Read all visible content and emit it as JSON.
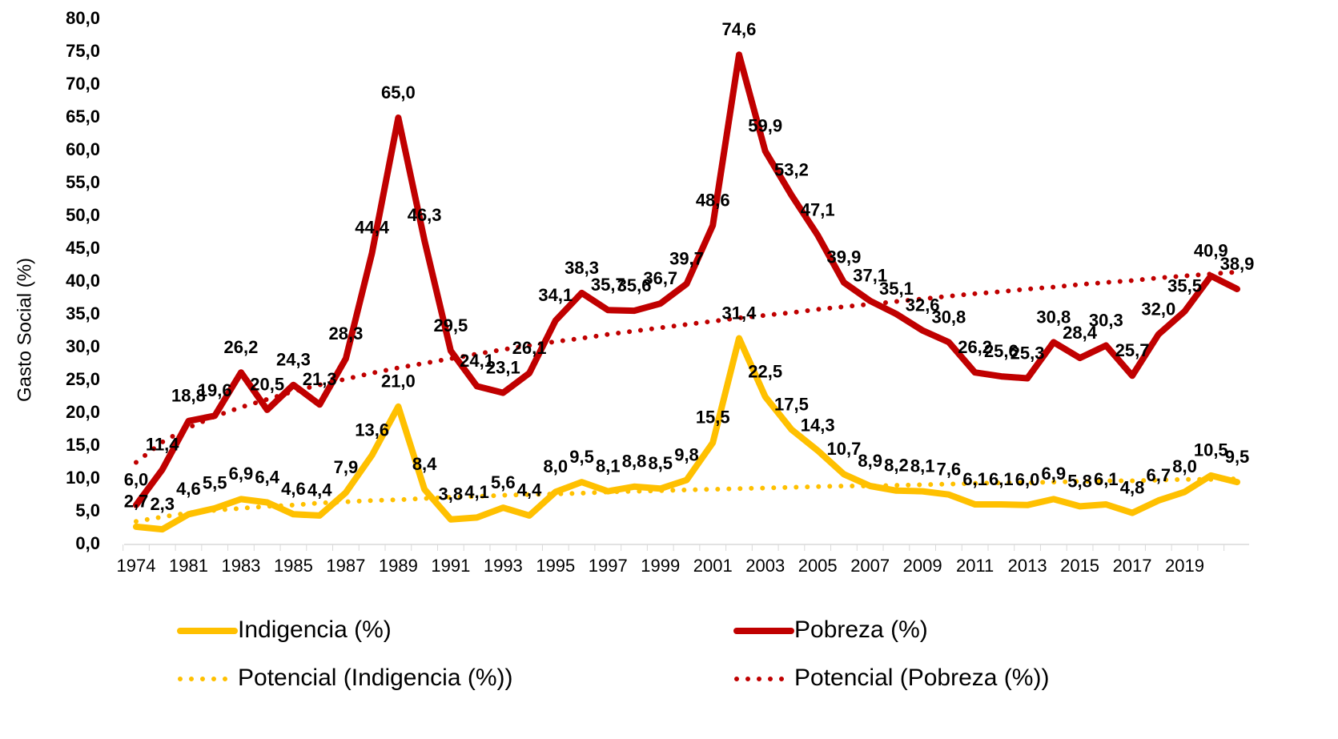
{
  "chart_data": {
    "type": "line",
    "y_label": "Gasto Social  (%)",
    "categories": [
      "1974",
      null,
      "1981",
      null,
      "1983",
      null,
      "1985",
      null,
      "1987",
      null,
      "1989",
      null,
      "1991",
      null,
      "1993",
      null,
      "1995",
      null,
      "1997",
      null,
      "1999",
      null,
      "2001",
      null,
      "2003",
      null,
      "2005",
      null,
      "2007",
      null,
      "2009",
      null,
      "2011",
      null,
      "2013",
      null,
      "2015",
      null,
      "2017",
      null,
      "2019",
      null,
      null
    ],
    "ylim": [
      0,
      80
    ],
    "yticks": [
      {
        "value": 0,
        "label": "0,0"
      },
      {
        "value": 5,
        "label": "5,0"
      },
      {
        "value": 10,
        "label": "10,0"
      },
      {
        "value": 15,
        "label": "15,0"
      },
      {
        "value": 20,
        "label": "20,0"
      },
      {
        "value": 25,
        "label": "25,0"
      },
      {
        "value": 30,
        "label": "30,0"
      },
      {
        "value": 35,
        "label": "35,0"
      },
      {
        "value": 40,
        "label": "40,0"
      },
      {
        "value": 45,
        "label": "45,0"
      },
      {
        "value": 50,
        "label": "50,0"
      },
      {
        "value": 55,
        "label": "55,0"
      },
      {
        "value": 60,
        "label": "60,0"
      },
      {
        "value": 65,
        "label": "65,0"
      },
      {
        "value": 70,
        "label": "70,0"
      },
      {
        "value": 75,
        "label": "75,0"
      },
      {
        "value": 80,
        "label": "80,0"
      }
    ],
    "series": [
      {
        "name": "Indigencia (%)",
        "color": "#FFC000",
        "dash": "solid",
        "values": [
          2.7,
          2.3,
          4.6,
          5.5,
          6.9,
          6.4,
          4.6,
          4.4,
          7.9,
          13.6,
          21.0,
          8.4,
          3.8,
          4.1,
          5.6,
          4.4,
          8.0,
          9.5,
          8.1,
          8.8,
          8.5,
          9.8,
          15.5,
          31.4,
          22.5,
          17.5,
          14.3,
          10.7,
          8.9,
          8.2,
          8.1,
          7.6,
          6.1,
          6.1,
          6.0,
          6.9,
          5.8,
          6.1,
          4.8,
          6.7,
          8.0,
          10.5,
          9.5
        ],
        "value_labels": [
          "2,7",
          "2,3",
          "4,6",
          "5,5",
          "6,9",
          "6,4",
          "4,6",
          "4,4",
          "7,9",
          "13,6",
          "21,0",
          "8,4",
          "3,8",
          "4,1",
          "5,6",
          "4,4",
          "8,0",
          "9,5",
          "8,1",
          "8,8",
          "8,5",
          "9,8",
          "15,5",
          "31,4",
          "22,5",
          "17,5",
          "14,3",
          "10,7",
          "8,9",
          "8,2",
          "8,1",
          "7,6",
          "6,1",
          "6,1",
          "6,0",
          "6,9",
          "5,8",
          "6,1",
          "4,8",
          "6,7",
          "8,0",
          "10,5",
          "9,5"
        ]
      },
      {
        "name": "Pobreza (%)",
        "color": "#C00000",
        "dash": "solid",
        "values": [
          6.0,
          11.4,
          18.8,
          19.6,
          26.2,
          20.5,
          24.3,
          21.3,
          28.3,
          44.4,
          65.0,
          46.3,
          29.5,
          24.1,
          23.1,
          26.1,
          34.1,
          38.3,
          35.7,
          35.6,
          36.7,
          39.7,
          48.6,
          74.6,
          59.9,
          53.2,
          47.1,
          39.9,
          37.1,
          35.1,
          32.6,
          30.8,
          26.2,
          25.6,
          25.3,
          30.8,
          28.4,
          30.3,
          25.7,
          32.0,
          35.5,
          40.9,
          38.9
        ],
        "value_labels": [
          "6,0",
          "11,4",
          "18,8",
          "19,6",
          "26,2",
          "20,5",
          "24,3",
          "21,3",
          "28,3",
          "44,4",
          "65,0",
          "46,3",
          "29,5",
          "24,1",
          "23,1",
          "26,1",
          "34,1",
          "38,3",
          "35,7",
          "35,6",
          "36,7",
          "39,7",
          "48,6",
          "74,6",
          "59,9",
          "53,2",
          "47,1",
          "39,9",
          "37,1",
          "35,1",
          "32,6",
          "30,8",
          "26,2",
          "25,6",
          "25,3",
          "30,8",
          "28,4",
          "30,3",
          "25,7",
          "32,0",
          "35,5",
          "40,9",
          "38,9"
        ]
      },
      {
        "name": "Potencial (Indigencia (%))",
        "color": "#FFC000",
        "dash": "dotted",
        "values": [
          3.5,
          4.2,
          4.8,
          5.2,
          5.5,
          5.8,
          6.0,
          6.3,
          6.5,
          6.7,
          6.8,
          7.0,
          7.2,
          7.3,
          7.5,
          7.6,
          7.7,
          7.8,
          8.0,
          8.1,
          8.2,
          8.3,
          8.4,
          8.5,
          8.6,
          8.7,
          8.8,
          8.9,
          8.9,
          9.0,
          9.1,
          9.2,
          9.3,
          9.4,
          9.4,
          9.5,
          9.6,
          9.7,
          9.7,
          9.8,
          9.9,
          9.9,
          10.0
        ]
      },
      {
        "name": "Potencial (Pobreza (%))",
        "color": "#C00000",
        "dash": "dotted",
        "values": [
          12.5,
          15.6,
          17.8,
          19.5,
          20.9,
          22.1,
          23.3,
          24.3,
          25.2,
          26.1,
          26.9,
          27.6,
          28.3,
          29.0,
          29.7,
          30.3,
          30.9,
          31.4,
          32.0,
          32.5,
          33.0,
          33.5,
          34.0,
          34.5,
          34.9,
          35.3,
          35.8,
          36.2,
          36.6,
          37.0,
          37.4,
          37.8,
          38.2,
          38.5,
          38.9,
          39.2,
          39.6,
          39.9,
          40.2,
          40.6,
          40.9,
          41.2,
          41.5
        ]
      }
    ],
    "grid": false
  }
}
